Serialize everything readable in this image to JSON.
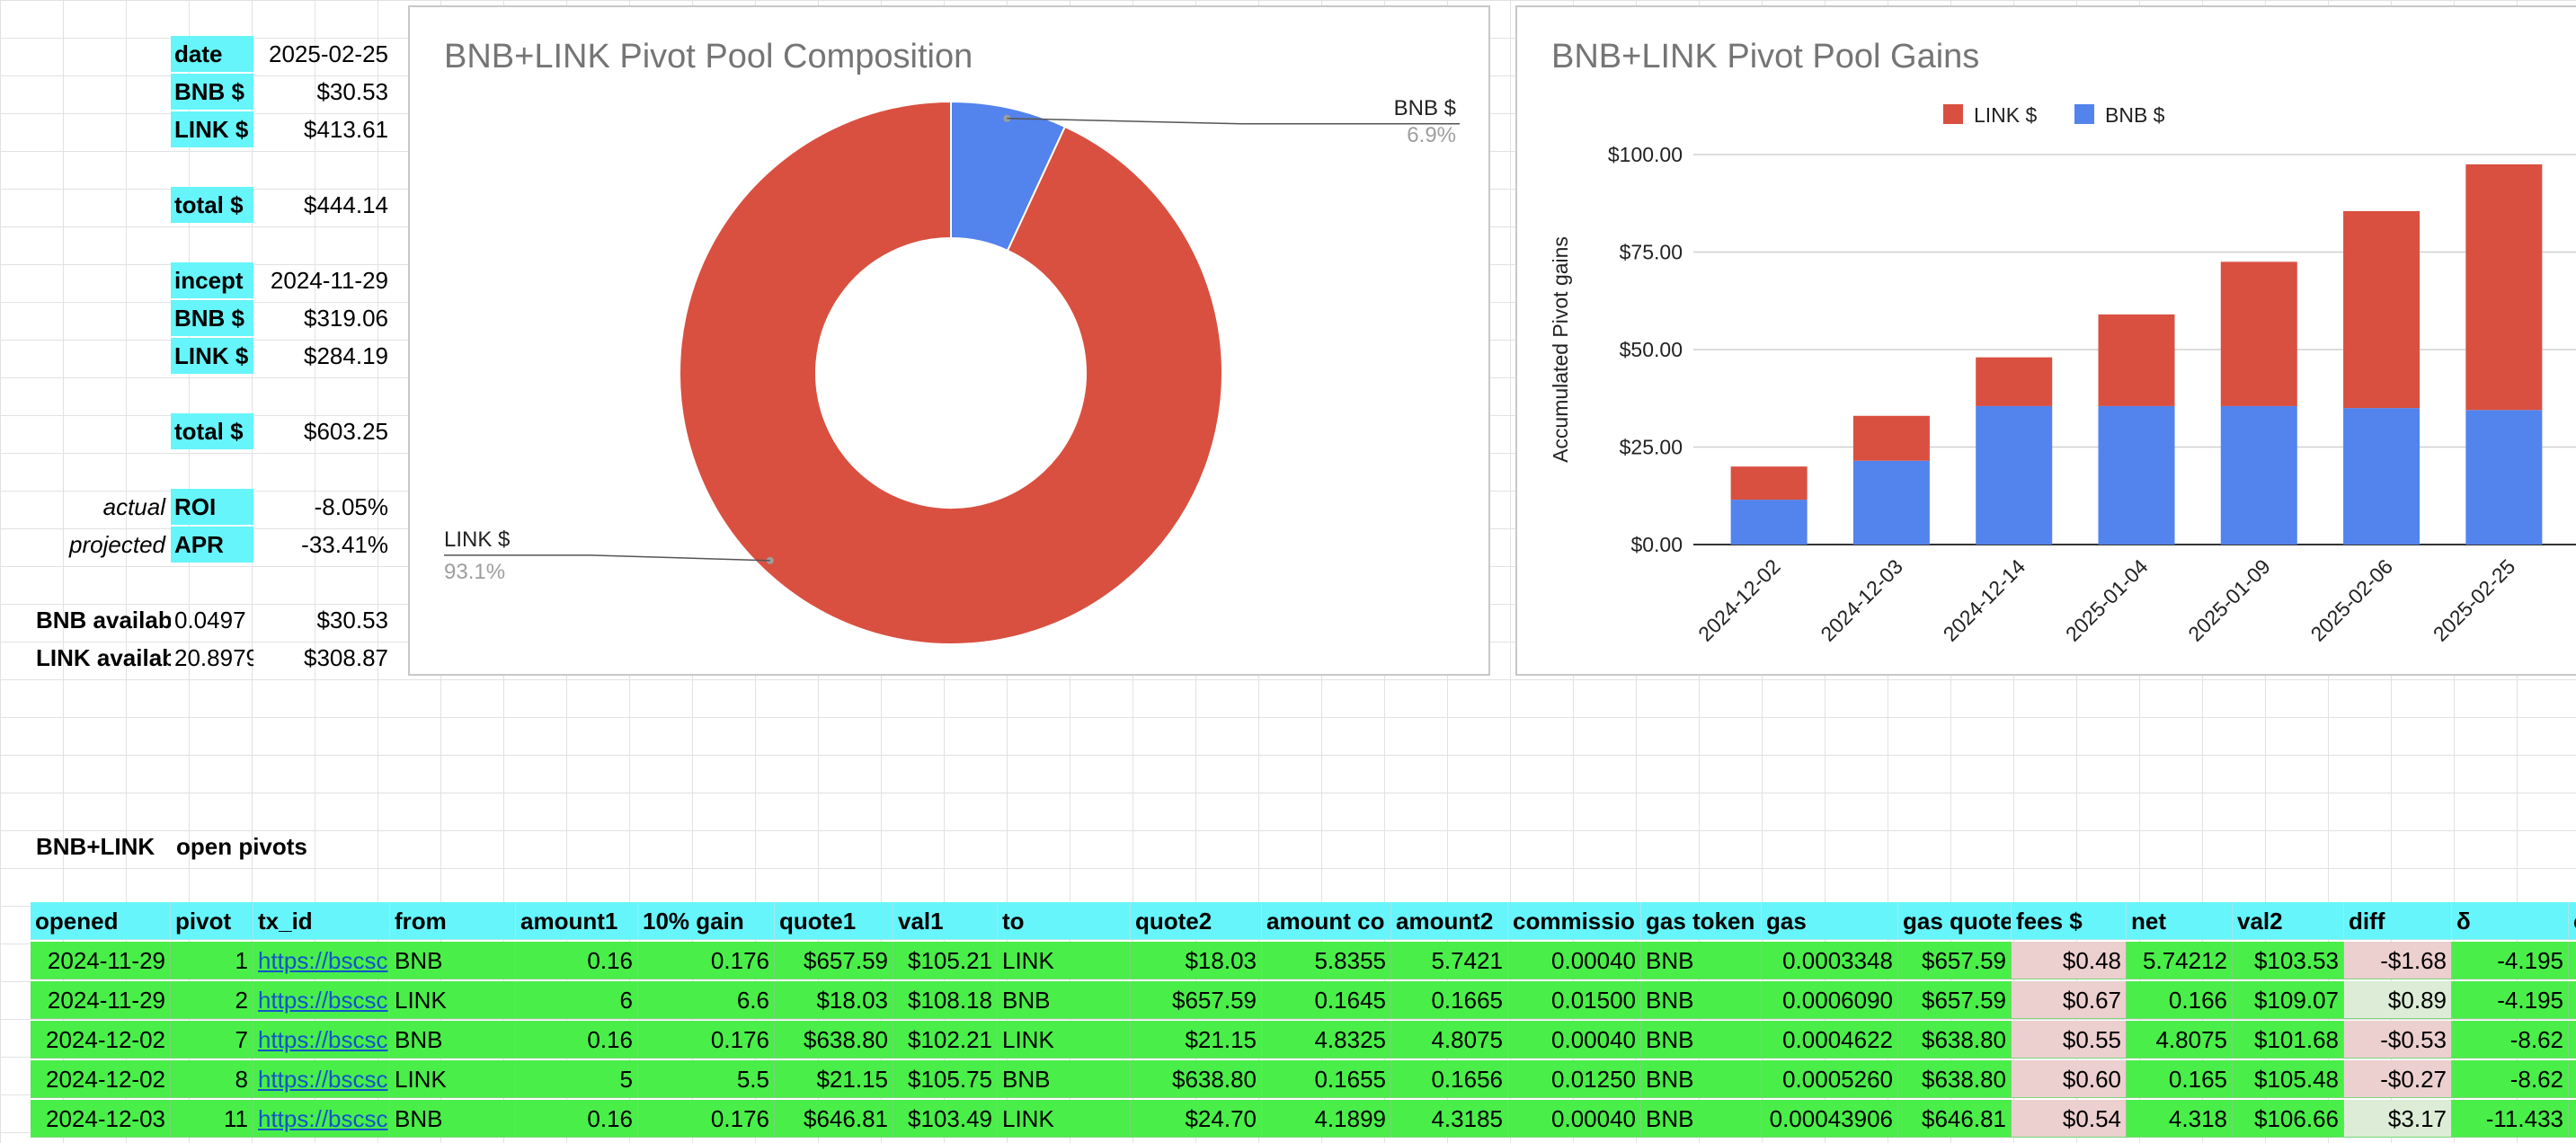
{
  "summary": {
    "date_label": "date",
    "date_value": "2025-02-25",
    "bnb_label": "BNB $",
    "bnb_value": "$30.53",
    "link_label": "LINK $",
    "link_value": "$413.61",
    "total_label": "total $",
    "total_value": "$444.14",
    "incept_label": "incept",
    "incept_value": "2024-11-29",
    "bnb2_label": "BNB $",
    "bnb2_value": "$319.06",
    "link2_label": "LINK $",
    "link2_value": "$284.19",
    "total2_label": "total $",
    "total2_value": "$603.25",
    "actual_label": "actual",
    "roi_label": "ROI",
    "roi_value": "-8.05%",
    "projected_label": "projected",
    "apr_label": "APR",
    "apr_value": "-33.41%",
    "bnb_avail_label": "BNB availab",
    "bnb_avail_qty": "0.0497",
    "bnb_avail_value": "$30.53",
    "link_avail_label": "LINK availab",
    "link_avail_qty": "20.8979",
    "link_avail_value": "$308.87"
  },
  "section": {
    "pair": "BNB+LINK",
    "title": "open pivots"
  },
  "chart_data": [
    {
      "type": "pie",
      "title": "BNB+LINK Pivot Pool Composition",
      "donut": true,
      "slices": [
        {
          "label": "BNB $",
          "percent": 6.9,
          "percent_label": "6.9%",
          "color": "#5383ec"
        },
        {
          "label": "LINK $",
          "percent": 93.1,
          "percent_label": "93.1%",
          "color": "#d95040"
        }
      ]
    },
    {
      "type": "bar",
      "stacked": true,
      "title": "BNB+LINK Pivot Pool Gains",
      "ylabel": "Accumulated Pivot gains",
      "xlabel": "",
      "ylim": [
        0,
        100
      ],
      "yticks": [
        "$0.00",
        "$25.00",
        "$50.00",
        "$75.00",
        "$100.00"
      ],
      "ytick_values": [
        0,
        25,
        50,
        75,
        100
      ],
      "categories": [
        "2024-12-02",
        "2024-12-03",
        "2024-12-14",
        "2025-01-04",
        "2025-01-09",
        "2025-02-06",
        "2025-02-25"
      ],
      "series": [
        {
          "name": "BNB $",
          "color": "#5383ec",
          "values": [
            11.5,
            21.5,
            35.5,
            35.5,
            35.5,
            35,
            34.5
          ]
        },
        {
          "name": "LINK $",
          "color": "#d95040",
          "values": [
            8.5,
            11.5,
            12.5,
            23.5,
            37,
            50.5,
            63
          ]
        }
      ],
      "legend": [
        "LINK $",
        "BNB $"
      ],
      "legend_position": "top"
    }
  ],
  "table": {
    "headers": [
      "opened",
      "pivot",
      "tx_id",
      "from",
      "amount1",
      "10% gain",
      "quote1",
      "val1",
      "to",
      "quote2",
      "amount co",
      "amount2",
      "commissio",
      "gas token",
      "gas",
      "gas quote",
      "fees $",
      "net",
      "val2",
      "diff",
      "δ",
      "c"
    ],
    "rows": [
      [
        "2024-11-29",
        "1",
        "https://bscsc",
        "BNB",
        "0.16",
        "0.176",
        "$657.59",
        "$105.21",
        "LINK",
        "$18.03",
        "5.8355",
        "5.7421",
        "0.00040",
        "BNB",
        "0.0003348",
        "$657.59",
        "$0.48",
        "5.74212",
        "$103.53",
        "-$1.68",
        "-4.195",
        ""
      ],
      [
        "2024-11-29",
        "2",
        "https://bscsc",
        "LINK",
        "6",
        "6.6",
        "$18.03",
        "$108.18",
        "BNB",
        "$657.59",
        "0.1645",
        "0.1665",
        "0.01500",
        "BNB",
        "0.0006090",
        "$657.59",
        "$0.67",
        "0.166",
        "$109.07",
        "$0.89",
        "-4.195",
        ""
      ],
      [
        "2024-12-02",
        "7",
        "https://bscsc",
        "BNB",
        "0.16",
        "0.176",
        "$638.80",
        "$102.21",
        "LINK",
        "$21.15",
        "4.8325",
        "4.8075",
        "0.00040",
        "BNB",
        "0.0004622",
        "$638.80",
        "$0.55",
        "4.8075",
        "$101.68",
        "-$0.53",
        "-8.62",
        ""
      ],
      [
        "2024-12-02",
        "8",
        "https://bscsc",
        "LINK",
        "5",
        "5.5",
        "$21.15",
        "$105.75",
        "BNB",
        "$638.80",
        "0.1655",
        "0.1656",
        "0.01250",
        "BNB",
        "0.0005260",
        "$638.80",
        "$0.60",
        "0.165",
        "$105.48",
        "-$0.27",
        "-8.62",
        ""
      ],
      [
        "2024-12-03",
        "11",
        "https://bscsc",
        "BNB",
        "0.16",
        "0.176",
        "$646.81",
        "$103.49",
        "LINK",
        "$24.70",
        "4.1899",
        "4.3185",
        "0.00040",
        "BNB",
        "0.00043906",
        "$646.81",
        "$0.54",
        "4.318",
        "$106.66",
        "$3.17",
        "-11.433",
        ""
      ]
    ]
  }
}
